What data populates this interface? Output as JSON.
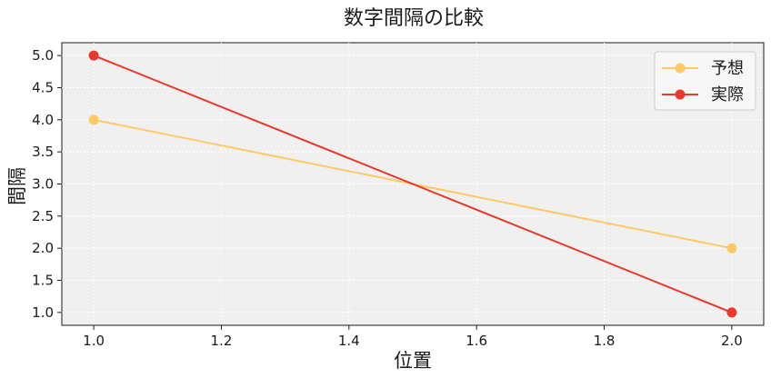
{
  "chart_data": {
    "type": "line",
    "title": "数字間隔の比較",
    "xlabel": "位置",
    "ylabel": "間隔",
    "x": [
      1.0,
      2.0
    ],
    "xlim": [
      0.95,
      2.05
    ],
    "ylim": [
      0.8,
      5.2
    ],
    "xticks": [
      "1.0",
      "1.2",
      "1.4",
      "1.6",
      "1.8",
      "2.0"
    ],
    "yticks": [
      "1.0",
      "1.5",
      "2.0",
      "2.5",
      "3.0",
      "3.5",
      "4.0",
      "4.5",
      "5.0"
    ],
    "grid": true,
    "legend_position": "top-right",
    "series": [
      {
        "name": "予想",
        "values": [
          4.0,
          2.0
        ],
        "color": "#FFC966"
      },
      {
        "name": "実際",
        "values": [
          5.0,
          1.0
        ],
        "color": "#E8392B"
      }
    ]
  }
}
